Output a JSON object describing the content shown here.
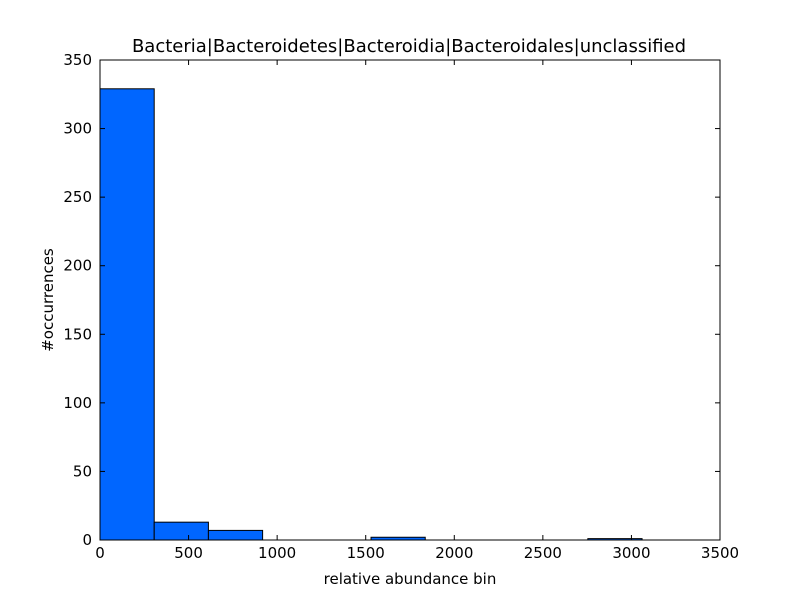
{
  "chart_data": {
    "type": "bar",
    "title": "Bacteria|Bacteroidetes|Bacteroidia|Bacteroidales|unclassified",
    "xlabel": "relative abundance bin",
    "ylabel": "#occurrences",
    "xlim": [
      0,
      3500
    ],
    "ylim": [
      0,
      350
    ],
    "xticks": [
      "0",
      "500",
      "1000",
      "1500",
      "2000",
      "2500",
      "3000",
      "3500"
    ],
    "yticks": [
      "0",
      "50",
      "100",
      "150",
      "200",
      "250",
      "300",
      "350"
    ],
    "bin_width": 306,
    "bins": [
      {
        "x0": 0,
        "x1": 306,
        "count": 329
      },
      {
        "x0": 306,
        "x1": 612,
        "count": 13
      },
      {
        "x0": 612,
        "x1": 918,
        "count": 7
      },
      {
        "x0": 918,
        "x1": 1224,
        "count": 0
      },
      {
        "x0": 1224,
        "x1": 1530,
        "count": 0
      },
      {
        "x0": 1530,
        "x1": 1836,
        "count": 2
      },
      {
        "x0": 1836,
        "x1": 2142,
        "count": 0
      },
      {
        "x0": 2142,
        "x1": 2448,
        "count": 0
      },
      {
        "x0": 2448,
        "x1": 2754,
        "count": 0
      },
      {
        "x0": 2754,
        "x1": 3060,
        "count": 1
      }
    ],
    "bar_color": "#0066ff",
    "edge_color": "#000000",
    "grid": false,
    "legend": false
  }
}
